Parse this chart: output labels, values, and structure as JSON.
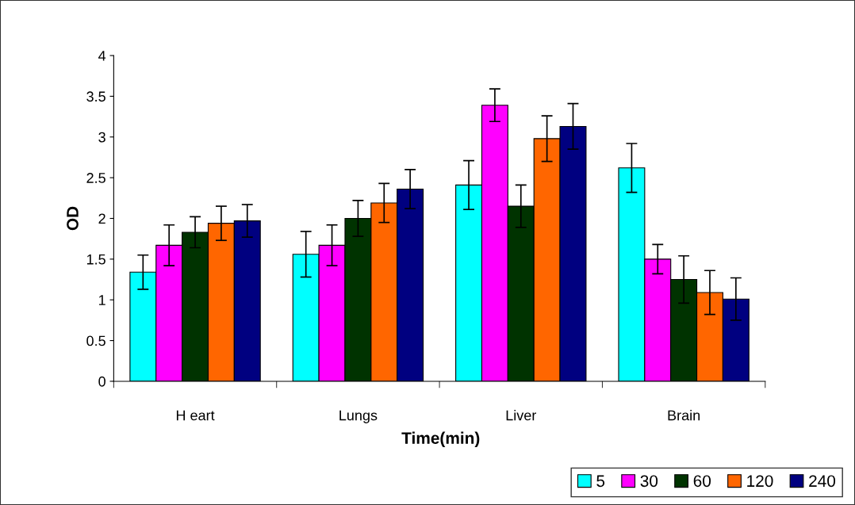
{
  "chart_data": {
    "type": "bar",
    "xlabel": "Time(min)",
    "ylabel": "OD",
    "categories": [
      "H eart",
      "Lungs",
      "Liver",
      "Brain"
    ],
    "series": [
      {
        "name": "5",
        "color": "#00ffff",
        "values": [
          1.34,
          1.56,
          2.41,
          2.62
        ],
        "errors": [
          0.21,
          0.28,
          0.3,
          0.3
        ]
      },
      {
        "name": "30",
        "color": "#ff00ff",
        "values": [
          1.67,
          1.67,
          3.39,
          1.5
        ],
        "errors": [
          0.25,
          0.25,
          0.2,
          0.18
        ]
      },
      {
        "name": "60",
        "color": "#003300",
        "values": [
          1.83,
          2.0,
          2.15,
          1.25
        ],
        "errors": [
          0.19,
          0.22,
          0.26,
          0.29
        ]
      },
      {
        "name": "120",
        "color": "#ff6600",
        "values": [
          1.94,
          2.19,
          2.98,
          1.09
        ],
        "errors": [
          0.21,
          0.24,
          0.28,
          0.27
        ]
      },
      {
        "name": "240",
        "color": "#000080",
        "values": [
          1.97,
          2.36,
          3.13,
          1.01
        ],
        "errors": [
          0.2,
          0.24,
          0.28,
          0.26
        ]
      }
    ],
    "ylim": [
      0,
      4
    ],
    "yticks": [
      0,
      0.5,
      1,
      1.5,
      2,
      2.5,
      3,
      3.5,
      4
    ],
    "grid": false,
    "legend": "bottom right"
  }
}
